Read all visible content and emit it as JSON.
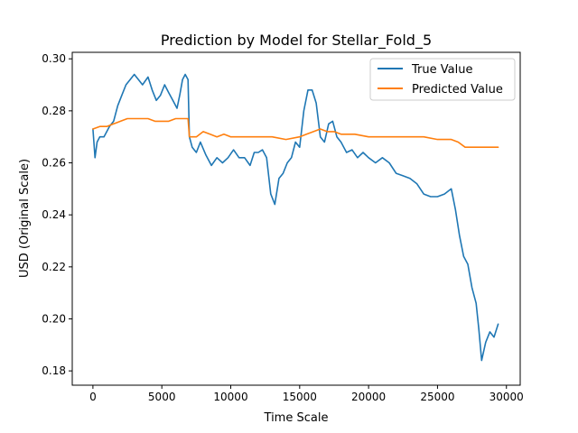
{
  "chart_data": {
    "type": "line",
    "title": "Prediction by Model for Stellar_Fold_5",
    "xlabel": "Time Scale",
    "ylabel": "USD (Original Scale)",
    "xlim": [
      -1500,
      31000
    ],
    "ylim": [
      0.1745,
      0.3025
    ],
    "xticks": [
      0,
      5000,
      10000,
      15000,
      20000,
      25000,
      30000
    ],
    "yticks": [
      0.18,
      0.2,
      0.22,
      0.24,
      0.26,
      0.28,
      0.3
    ],
    "xtick_labels": [
      "0",
      "5000",
      "10000",
      "15000",
      "20000",
      "25000",
      "30000"
    ],
    "ytick_labels": [
      "0.18",
      "0.20",
      "0.22",
      "0.24",
      "0.26",
      "0.28",
      "0.30"
    ],
    "legend_position": "top-right",
    "grid": false,
    "series": [
      {
        "name": "True Value",
        "color": "#1f77b4",
        "x": [
          0,
          150,
          300,
          500,
          800,
          1200,
          1500,
          1800,
          2100,
          2400,
          2700,
          3000,
          3300,
          3600,
          4000,
          4300,
          4600,
          4900,
          5200,
          5500,
          5800,
          6100,
          6300,
          6500,
          6700,
          6900,
          7000,
          7200,
          7500,
          7800,
          8200,
          8600,
          9000,
          9400,
          9800,
          10200,
          10600,
          11000,
          11400,
          11700,
          12000,
          12300,
          12600,
          12900,
          13200,
          13500,
          13800,
          14100,
          14400,
          14700,
          15000,
          15300,
          15600,
          15900,
          16200,
          16500,
          16800,
          17100,
          17400,
          17700,
          18000,
          18400,
          18800,
          19200,
          19600,
          20000,
          20500,
          21000,
          21500,
          22000,
          22500,
          23000,
          23500,
          24000,
          24500,
          25000,
          25500,
          26000,
          26300,
          26600,
          26900,
          27200,
          27500,
          27800,
          28000,
          28200,
          28500,
          28800,
          29100,
          29400
        ],
        "y": [
          0.273,
          0.262,
          0.268,
          0.27,
          0.27,
          0.274,
          0.276,
          0.282,
          0.286,
          0.29,
          0.292,
          0.294,
          0.292,
          0.29,
          0.293,
          0.288,
          0.284,
          0.286,
          0.29,
          0.287,
          0.284,
          0.281,
          0.286,
          0.292,
          0.294,
          0.292,
          0.27,
          0.266,
          0.264,
          0.268,
          0.263,
          0.259,
          0.262,
          0.26,
          0.262,
          0.265,
          0.262,
          0.262,
          0.259,
          0.264,
          0.264,
          0.265,
          0.262,
          0.248,
          0.244,
          0.254,
          0.256,
          0.26,
          0.262,
          0.268,
          0.266,
          0.28,
          0.288,
          0.288,
          0.283,
          0.27,
          0.268,
          0.275,
          0.276,
          0.27,
          0.268,
          0.264,
          0.265,
          0.262,
          0.264,
          0.262,
          0.26,
          0.262,
          0.26,
          0.256,
          0.255,
          0.254,
          0.252,
          0.248,
          0.247,
          0.247,
          0.248,
          0.25,
          0.242,
          0.232,
          0.224,
          0.221,
          0.212,
          0.206,
          0.196,
          0.184,
          0.191,
          0.195,
          0.193,
          0.198
        ]
      },
      {
        "name": "Predicted Value",
        "color": "#ff7f0e",
        "x": [
          0,
          500,
          1000,
          1500,
          2000,
          2500,
          3000,
          3500,
          4000,
          4500,
          5000,
          5500,
          6000,
          6500,
          6900,
          7000,
          7500,
          8000,
          8500,
          9000,
          9500,
          10000,
          11000,
          12000,
          13000,
          14000,
          15000,
          15500,
          16000,
          16500,
          17000,
          17500,
          18000,
          19000,
          20000,
          21000,
          22000,
          23000,
          24000,
          25000,
          26000,
          26500,
          27000,
          27500,
          28000,
          28500,
          29000,
          29400
        ],
        "y": [
          0.273,
          0.274,
          0.274,
          0.275,
          0.276,
          0.277,
          0.277,
          0.277,
          0.277,
          0.276,
          0.276,
          0.276,
          0.277,
          0.277,
          0.277,
          0.27,
          0.27,
          0.272,
          0.271,
          0.27,
          0.271,
          0.27,
          0.27,
          0.27,
          0.27,
          0.269,
          0.27,
          0.271,
          0.272,
          0.273,
          0.272,
          0.272,
          0.271,
          0.271,
          0.27,
          0.27,
          0.27,
          0.27,
          0.27,
          0.269,
          0.269,
          0.268,
          0.266,
          0.266,
          0.266,
          0.266,
          0.266,
          0.266
        ]
      }
    ]
  }
}
